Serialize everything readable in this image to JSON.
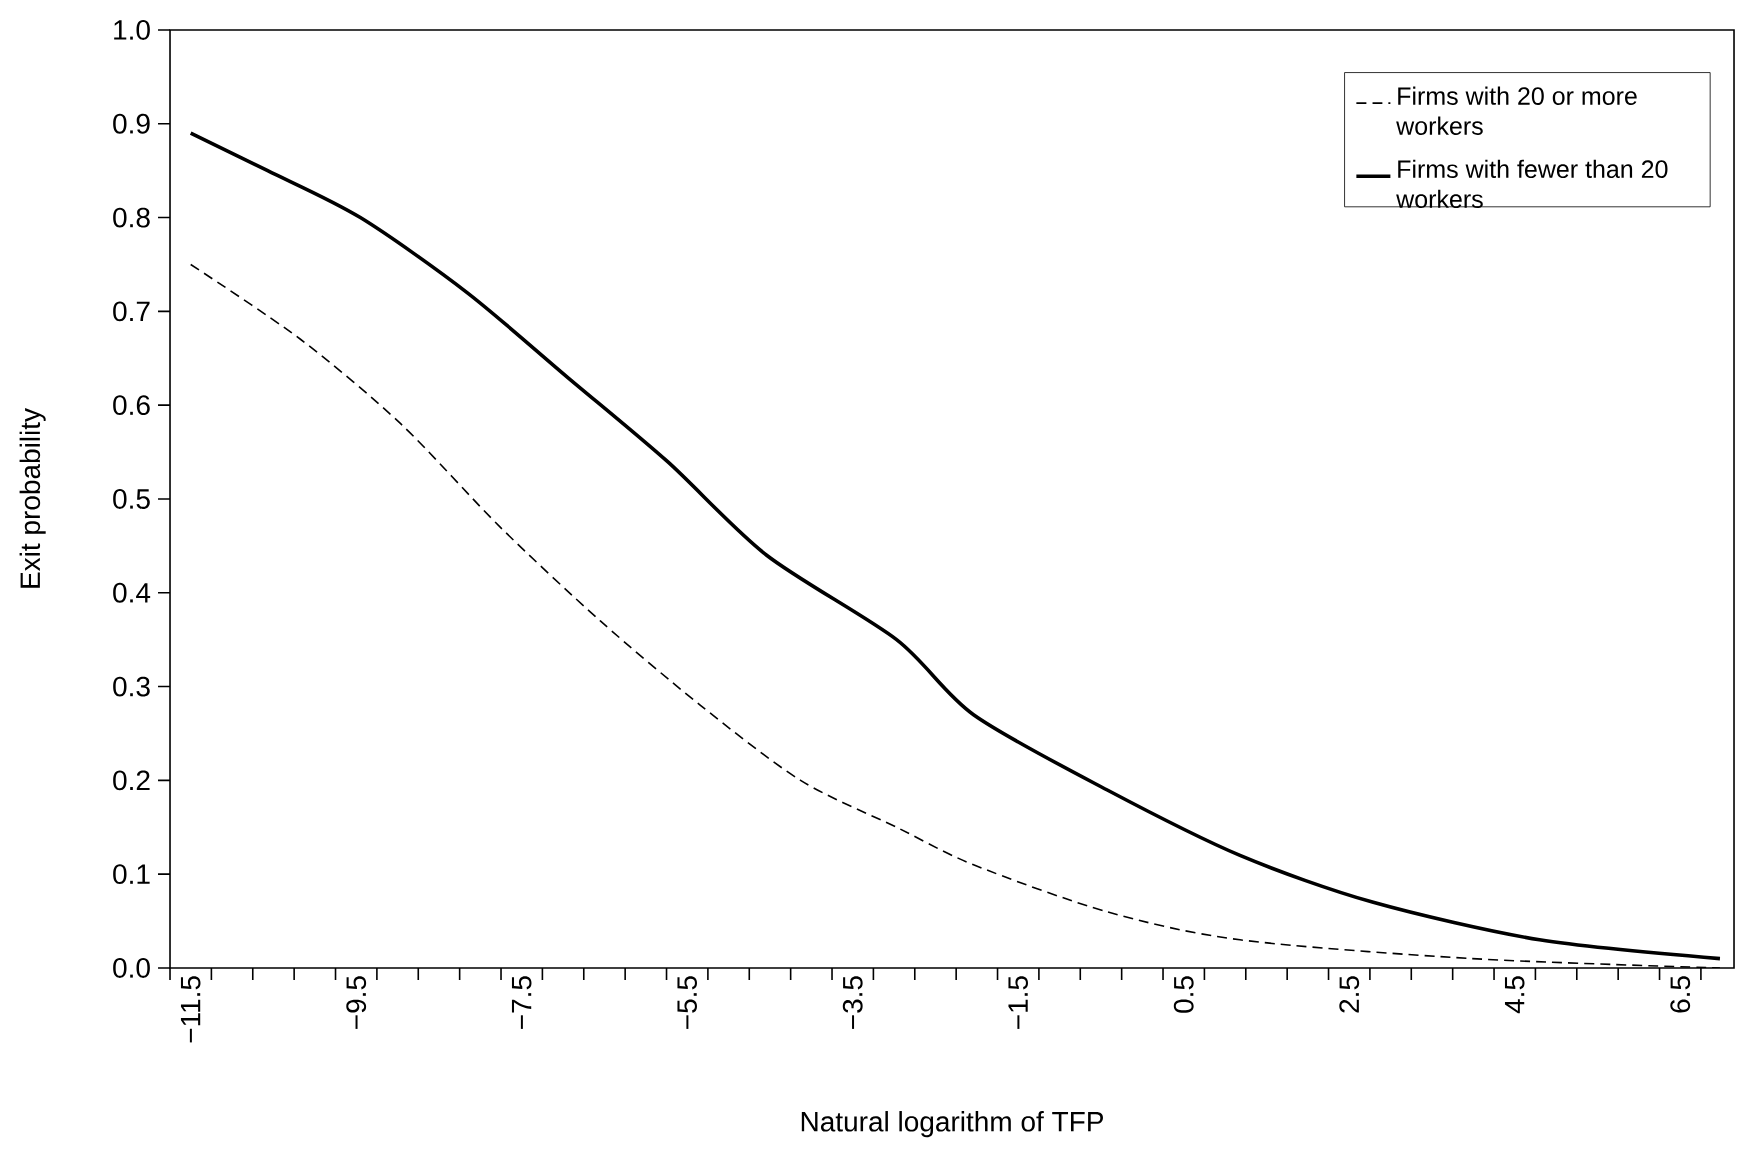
{
  "chart_data": {
    "type": "line",
    "xlabel": "Natural logarithm of TFP",
    "ylabel": "Exit probability",
    "xlim": [
      -11.75,
      7.15
    ],
    "ylim": [
      0,
      1
    ],
    "xticks": [
      {
        "value": -11.5,
        "label": "−11.5"
      },
      {
        "value": -9.5,
        "label": "−9.5"
      },
      {
        "value": -7.5,
        "label": "−7.5"
      },
      {
        "value": -5.5,
        "label": "−5.5"
      },
      {
        "value": -3.5,
        "label": "−3.5"
      },
      {
        "value": -1.5,
        "label": "−1.5"
      },
      {
        "value": 0.5,
        "label": "0.5"
      },
      {
        "value": 2.5,
        "label": "2.5"
      },
      {
        "value": 4.5,
        "label": "4.5"
      },
      {
        "value": 6.5,
        "label": "6.5"
      },
      {
        "value": -11.75,
        "label": null
      },
      {
        "value": -11.25,
        "label": null
      },
      {
        "value": -10.75,
        "label": null
      },
      {
        "value": -10.25,
        "label": null
      },
      {
        "value": -9.75,
        "label": null
      },
      {
        "value": -9.25,
        "label": null
      },
      {
        "value": -8.75,
        "label": null
      },
      {
        "value": -8.25,
        "label": null
      },
      {
        "value": -7.75,
        "label": null
      },
      {
        "value": -7.25,
        "label": null
      },
      {
        "value": -6.75,
        "label": null
      },
      {
        "value": -6.25,
        "label": null
      },
      {
        "value": -5.75,
        "label": null
      },
      {
        "value": -5.25,
        "label": null
      },
      {
        "value": -4.75,
        "label": null
      },
      {
        "value": -4.25,
        "label": null
      },
      {
        "value": -3.75,
        "label": null
      },
      {
        "value": -3.25,
        "label": null
      },
      {
        "value": -2.75,
        "label": null
      },
      {
        "value": -2.25,
        "label": null
      },
      {
        "value": -1.75,
        "label": null
      },
      {
        "value": -1.25,
        "label": null
      },
      {
        "value": -0.75,
        "label": null
      },
      {
        "value": -0.25,
        "label": null
      },
      {
        "value": 0.25,
        "label": null
      },
      {
        "value": 0.75,
        "label": null
      },
      {
        "value": 1.25,
        "label": null
      },
      {
        "value": 1.75,
        "label": null
      },
      {
        "value": 2.25,
        "label": null
      },
      {
        "value": 2.75,
        "label": null
      },
      {
        "value": 3.25,
        "label": null
      },
      {
        "value": 3.75,
        "label": null
      },
      {
        "value": 4.25,
        "label": null
      },
      {
        "value": 4.75,
        "label": null
      },
      {
        "value": 5.25,
        "label": null
      },
      {
        "value": 5.75,
        "label": null
      },
      {
        "value": 6.25,
        "label": null
      },
      {
        "value": 6.75,
        "label": null
      }
    ],
    "yticks": [
      {
        "value": 0,
        "label": "0.0"
      },
      {
        "value": 0.1,
        "label": "0.1"
      },
      {
        "value": 0.2,
        "label": "0.2"
      },
      {
        "value": 0.3,
        "label": "0.3"
      },
      {
        "value": 0.4,
        "label": "0.4"
      },
      {
        "value": 0.5,
        "label": "0.5"
      },
      {
        "value": 0.6,
        "label": "0.6"
      },
      {
        "value": 0.7,
        "label": "0.7"
      },
      {
        "value": 0.8,
        "label": "0.8"
      },
      {
        "value": 0.9,
        "label": "0.9"
      },
      {
        "value": 1,
        "label": "1.0"
      }
    ],
    "grid": false,
    "legend": "top right",
    "series": [
      {
        "name": "Firms with 20 or more workers",
        "color": "#000000",
        "line_style": "dashed",
        "x": [
          -11.5,
          -10.17,
          -8.96,
          -7.76,
          -6.55,
          -5.34,
          -4.13,
          -2.97,
          -2.04,
          -0.43,
          1.18,
          3.98,
          6.98
        ],
        "values": [
          0.75,
          0.67,
          0.58,
          0.47,
          0.37,
          0.28,
          0.2,
          0.15,
          0.11,
          0.06,
          0.03,
          0.01,
          0.0
        ]
      },
      {
        "name": "Firms with fewer than 20 workers",
        "color": "#000000",
        "line_style": "solid",
        "x": [
          -11.5,
          -10.57,
          -9.45,
          -8.16,
          -6.95,
          -5.74,
          -4.54,
          -2.97,
          -2.04,
          -0.43,
          1.18,
          2.79,
          4.8,
          6.98
        ],
        "values": [
          0.89,
          0.85,
          0.8,
          0.72,
          0.63,
          0.54,
          0.44,
          0.35,
          0.27,
          0.19,
          0.12,
          0.07,
          0.03,
          0.01
        ]
      }
    ]
  }
}
